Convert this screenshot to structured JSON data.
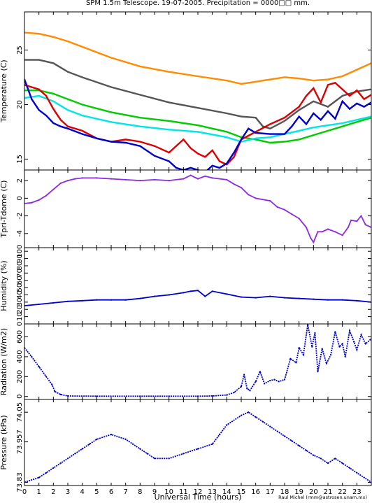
{
  "title": "SPM 1.5m Telescope. 19-07-2005. Precipitation = 0000□□ mm.",
  "credit": "Raul Michel (rmm@astrosen.unam.mx)",
  "chart_data": [
    {
      "type": "scatter",
      "id": "temperature",
      "ylabel": "Temperature (C)",
      "xlim": [
        0,
        24
      ],
      "ylim": [
        14,
        28.5
      ],
      "yticks": [
        15,
        20,
        25
      ],
      "series": [
        {
          "color": "#ff8c00",
          "x": [
            0,
            1,
            2,
            3,
            4,
            6,
            8,
            10,
            12,
            14,
            15,
            16,
            17,
            18,
            19,
            20,
            21,
            22,
            23,
            24
          ],
          "y": [
            26.6,
            26.5,
            26.2,
            25.8,
            25.3,
            24.3,
            23.5,
            23.0,
            22.6,
            22.2,
            21.9,
            22.1,
            22.3,
            22.5,
            22.4,
            22.2,
            22.3,
            22.6,
            23.2,
            23.8
          ]
        },
        {
          "color": "#555555",
          "x": [
            0,
            1,
            2,
            3,
            4,
            6,
            8,
            10,
            12,
            14,
            15,
            16,
            16.5,
            17,
            18,
            19,
            20,
            21,
            22,
            23,
            24
          ],
          "y": [
            24.1,
            24.1,
            23.8,
            23.0,
            22.5,
            21.6,
            20.9,
            20.2,
            19.7,
            19.2,
            18.9,
            18.8,
            18.0,
            17.8,
            18.5,
            19.5,
            20.3,
            19.8,
            20.8,
            21.2,
            21.4
          ]
        },
        {
          "color": "#00cc00",
          "x": [
            0,
            1,
            2,
            3,
            4,
            6,
            8,
            10,
            12,
            14,
            15,
            16,
            17,
            18,
            19,
            20,
            21,
            22,
            23,
            24
          ],
          "y": [
            21.3,
            21.3,
            21.0,
            20.5,
            20.0,
            19.3,
            18.8,
            18.5,
            18.1,
            17.5,
            17.0,
            16.8,
            16.5,
            16.6,
            16.8,
            17.2,
            17.6,
            18.0,
            18.4,
            18.8
          ]
        },
        {
          "color": "#00e5e5",
          "x": [
            0,
            1,
            2,
            3,
            4,
            6,
            8,
            10,
            12,
            14,
            15,
            16,
            17,
            18,
            19,
            20,
            21,
            22,
            23,
            24
          ],
          "y": [
            20.6,
            20.8,
            20.3,
            19.5,
            19.0,
            18.4,
            18.0,
            17.7,
            17.5,
            17.0,
            16.6,
            16.9,
            17.0,
            17.3,
            17.6,
            17.9,
            18.1,
            18.3,
            18.6,
            18.9
          ]
        },
        {
          "color": "#dd0000",
          "x": [
            0,
            1,
            1.5,
            2,
            2.5,
            3,
            4,
            5,
            6,
            7,
            8,
            9,
            10,
            11,
            11.5,
            12,
            12.5,
            13,
            13.5,
            14,
            14.5,
            15,
            16,
            17,
            18,
            19,
            19.5,
            20,
            20.5,
            21,
            21.5,
            22,
            22.5,
            23,
            23.5,
            24
          ],
          "y": [
            21.8,
            21.4,
            20.8,
            19.6,
            18.6,
            18.0,
            17.6,
            16.9,
            16.6,
            16.8,
            16.6,
            16.2,
            15.6,
            16.8,
            16.0,
            15.5,
            15.2,
            15.8,
            14.8,
            14.5,
            15.2,
            16.8,
            17.5,
            18.2,
            18.8,
            19.8,
            20.8,
            21.5,
            20.2,
            21.8,
            22.0,
            21.4,
            20.8,
            21.3,
            20.5,
            20.9
          ]
        },
        {
          "color": "#0000cc",
          "x": [
            0,
            0.5,
            1,
            1.5,
            2,
            2.5,
            3,
            4,
            5,
            6,
            7,
            8,
            9,
            10,
            10.5,
            11,
            11.5,
            12,
            12.5,
            13,
            13.5,
            14,
            14.5,
            15,
            15.5,
            16,
            17,
            18,
            18.5,
            19,
            19.5,
            20,
            20.5,
            21,
            21.5,
            22,
            22.5,
            23,
            23.5,
            24
          ],
          "y": [
            22.3,
            20.5,
            19.5,
            19.0,
            18.3,
            18.0,
            17.8,
            17.3,
            16.9,
            16.6,
            16.5,
            16.2,
            15.3,
            14.8,
            14.2,
            14.0,
            14.2,
            14.0,
            13.8,
            14.4,
            14.2,
            14.6,
            15.6,
            16.8,
            17.8,
            17.4,
            17.3,
            17.3,
            18.0,
            18.9,
            18.2,
            19.2,
            18.6,
            19.4,
            18.7,
            20.3,
            19.6,
            20.1,
            19.8,
            20.2
          ]
        }
      ]
    },
    {
      "type": "scatter",
      "id": "tdelta",
      "ylabel": "Tpri-Tdome (C)",
      "xlim": [
        0,
        24
      ],
      "ylim": [
        -5.6,
        3.2
      ],
      "yticks": [
        2,
        0,
        -2,
        -4
      ],
      "series": [
        {
          "color": "#8a2be2",
          "x": [
            0,
            0.5,
            1,
            1.5,
            2,
            2.5,
            3,
            3.5,
            4,
            5,
            6,
            7,
            8,
            9,
            10,
            11,
            11.5,
            12,
            12.5,
            13,
            14,
            14.5,
            15,
            15.5,
            16,
            17,
            17.5,
            18,
            18.5,
            19,
            19.5,
            19.8,
            20,
            20.3,
            20.6,
            21,
            21.5,
            22,
            22.4,
            22.6,
            23,
            23.3,
            23.6,
            24
          ],
          "y": [
            -0.6,
            -0.5,
            -0.2,
            0.3,
            1.0,
            1.7,
            2.0,
            2.2,
            2.3,
            2.3,
            2.2,
            2.1,
            2.0,
            2.1,
            2.0,
            2.2,
            2.6,
            2.2,
            2.5,
            2.3,
            2.1,
            1.6,
            1.2,
            0.4,
            0.0,
            -0.3,
            -1.0,
            -1.3,
            -1.8,
            -2.3,
            -3.3,
            -4.5,
            -5.0,
            -3.8,
            -3.8,
            -3.5,
            -3.8,
            -4.2,
            -3.3,
            -2.5,
            -2.6,
            -2.0,
            -3.0,
            -3.3
          ]
        }
      ]
    },
    {
      "type": "scatter",
      "id": "humidity",
      "ylabel": "Humidity (%)",
      "xlim": [
        0,
        24
      ],
      "ylim": [
        0,
        105
      ],
      "yticks": [
        0,
        10,
        20,
        30,
        40,
        50,
        60,
        70,
        80,
        90,
        100
      ],
      "series": [
        {
          "color": "#0000cc",
          "x": [
            0,
            1,
            2,
            3,
            4,
            5,
            6,
            7,
            8,
            9,
            10,
            11,
            11.5,
            12,
            12.5,
            13,
            14,
            15,
            16,
            17,
            18,
            19,
            20,
            21,
            22,
            23,
            24
          ],
          "y": [
            25,
            27,
            29,
            31,
            32,
            33,
            33,
            33,
            35,
            38,
            40,
            43,
            45,
            46,
            38,
            45,
            41,
            37,
            36,
            38,
            36,
            35,
            34,
            33,
            33,
            32,
            30
          ]
        }
      ]
    },
    {
      "type": "scatter",
      "id": "radiation",
      "ylabel": "Radiation (W/m2)",
      "xlim": [
        0,
        24
      ],
      "ylim": [
        -30,
        730
      ],
      "yticks": [
        0,
        200,
        400,
        600
      ],
      "series": [
        {
          "color": "#0000cc",
          "x": [
            0,
            0.5,
            1,
            1.5,
            1.9,
            2.1,
            2.5,
            3,
            5,
            8,
            10,
            12,
            13,
            14,
            14.5,
            15,
            15.2,
            15.4,
            15.6,
            16,
            16.3,
            16.6,
            17,
            17.3,
            17.6,
            18,
            18.4,
            18.8,
            19,
            19.3,
            19.6,
            19.9,
            20.1,
            20.3,
            20.6,
            20.9,
            21.2,
            21.5,
            21.8,
            22,
            22.2,
            22.5,
            22.8,
            23,
            23.3,
            23.6,
            24
          ],
          "y": [
            490,
            400,
            300,
            200,
            120,
            50,
            20,
            5,
            3,
            3,
            3,
            3,
            5,
            15,
            40,
            100,
            220,
            80,
            60,
            150,
            250,
            130,
            160,
            170,
            150,
            170,
            380,
            340,
            490,
            420,
            720,
            500,
            640,
            250,
            480,
            330,
            420,
            650,
            500,
            530,
            400,
            660,
            550,
            470,
            620,
            530,
            580
          ]
        }
      ]
    },
    {
      "type": "scatter",
      "id": "pressure",
      "ylabel": "Pressure (kPa)",
      "xlim": [
        0,
        24
      ],
      "ylim": [
        73.82,
        74.09
      ],
      "yticks": [
        73.83,
        73.957,
        74.05
      ],
      "ytick_labels": [
        "73.83",
        "73.957",
        "74.05"
      ],
      "series": [
        {
          "color": "#0000cc",
          "x": [
            0,
            1,
            1.5,
            2,
            2.5,
            3,
            3.5,
            4,
            4.5,
            5,
            6,
            7,
            7.5,
            8,
            8.5,
            9,
            10,
            11,
            12,
            13,
            13.5,
            14,
            15,
            15.5,
            16,
            16.5,
            17,
            17.5,
            18,
            18.5,
            19,
            19.5,
            20,
            20.5,
            21,
            21.5,
            22,
            22.5,
            23,
            23.5,
            24
          ],
          "y": [
            73.83,
            73.845,
            73.86,
            73.875,
            73.89,
            73.905,
            73.92,
            73.935,
            73.95,
            73.965,
            73.98,
            73.965,
            73.95,
            73.935,
            73.92,
            73.905,
            73.905,
            73.92,
            73.935,
            73.95,
            73.98,
            74.01,
            74.04,
            74.05,
            74.035,
            74.02,
            74.005,
            73.99,
            73.975,
            73.96,
            73.945,
            73.93,
            73.915,
            73.905,
            73.89,
            73.905,
            73.89,
            73.875,
            73.86,
            73.845,
            73.83
          ]
        }
      ]
    }
  ],
  "x_axis": {
    "label": "Universal Time (hours)",
    "ticks": [
      "0",
      "1",
      "2",
      "3",
      "4",
      "5",
      "6",
      "7",
      "8",
      "9",
      "10",
      "11",
      "12",
      "13",
      "14",
      "15",
      "16",
      "17",
      "18",
      "19",
      "20",
      "21",
      "22",
      "23"
    ]
  }
}
